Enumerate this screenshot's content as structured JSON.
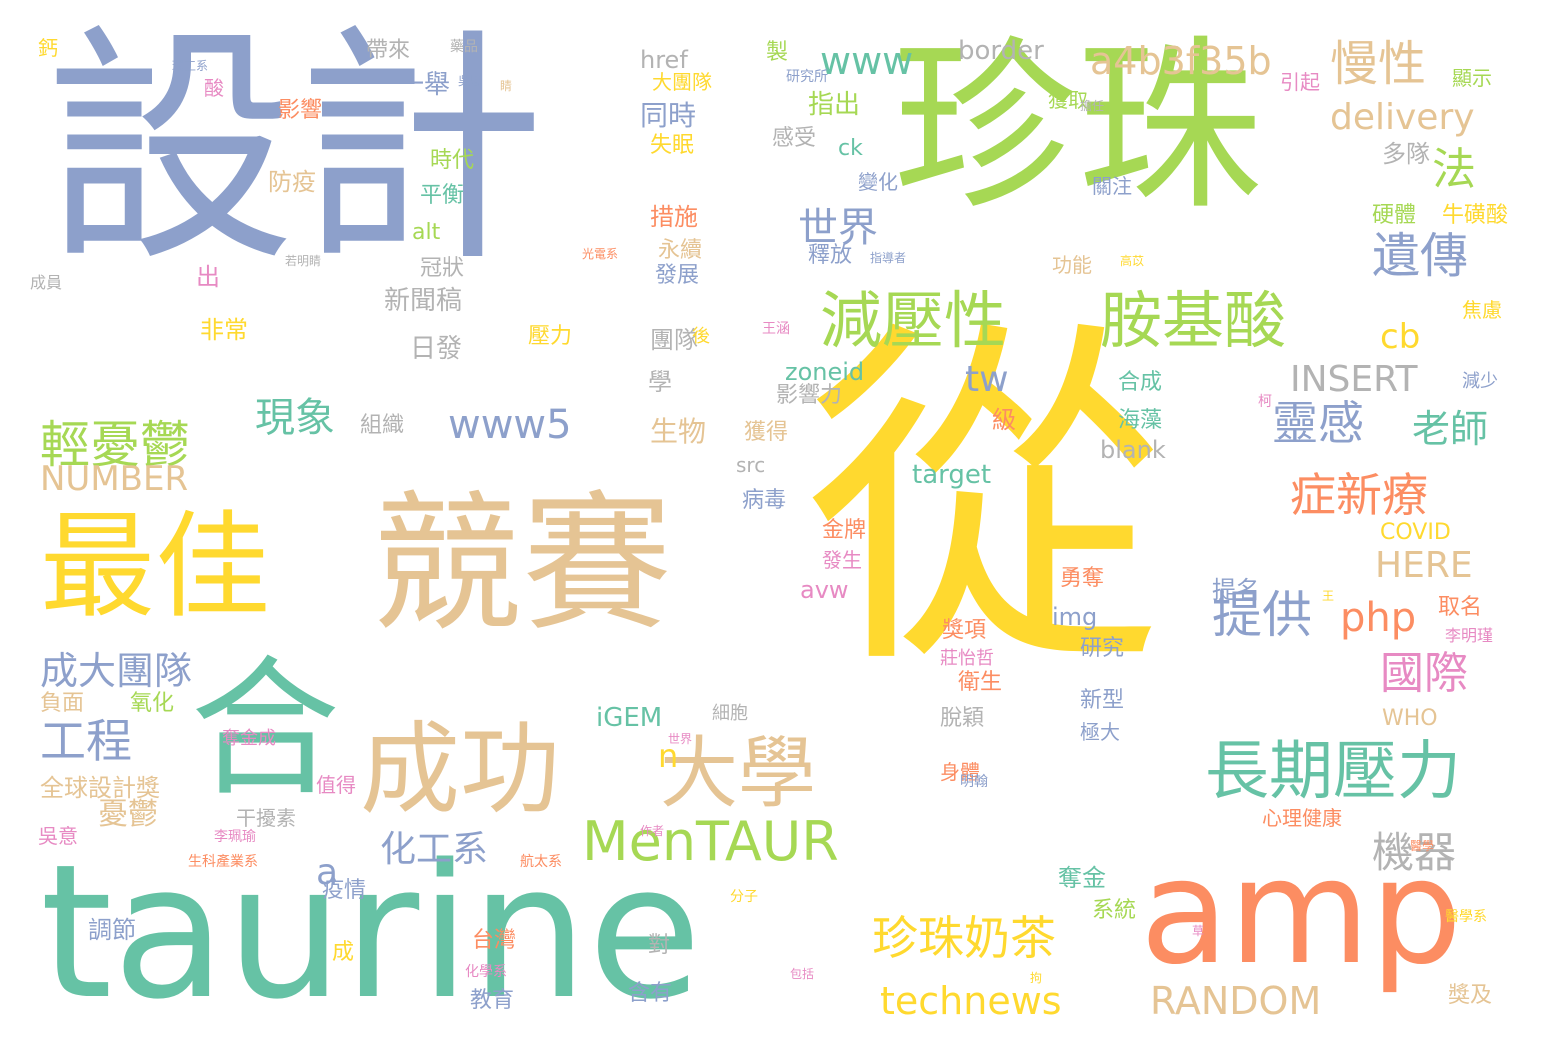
{
  "palette": {
    "blue": "#8da0cb",
    "green": "#66c2a5",
    "orange": "#fc8d62",
    "pink": "#e78ac3",
    "lime": "#a6d854",
    "yellow": "#ffd92f",
    "tan": "#e5c494",
    "gray": "#b3b3b3"
  },
  "words": [
    {
      "text": "設計",
      "color": "blue"
    },
    {
      "text": "珍珠",
      "color": "lime"
    },
    {
      "text": "從",
      "color": "yellow"
    },
    {
      "text": "競賽",
      "color": "tan"
    },
    {
      "text": "最佳",
      "color": "yellow"
    },
    {
      "text": "合",
      "color": "green"
    },
    {
      "text": "taurine",
      "color": "green"
    },
    {
      "text": "amp",
      "color": "orange"
    },
    {
      "text": "成功",
      "color": "tan"
    },
    {
      "text": "大學",
      "color": "tan"
    },
    {
      "text": "減壓性",
      "color": "lime"
    },
    {
      "text": "胺基酸",
      "color": "lime"
    },
    {
      "text": "長期壓力",
      "color": "green"
    },
    {
      "text": "MenTAUR",
      "color": "lime"
    },
    {
      "text": "慢性",
      "color": "tan"
    },
    {
      "text": "a4b3f35b",
      "color": "tan"
    },
    {
      "text": "www",
      "color": "green"
    },
    {
      "text": "遺傳",
      "color": "blue"
    },
    {
      "text": "法",
      "color": "lime"
    },
    {
      "text": "世界",
      "color": "blue"
    },
    {
      "text": "delivery",
      "color": "tan"
    },
    {
      "text": "輕憂鬱",
      "color": "lime"
    },
    {
      "text": "現象",
      "color": "green"
    },
    {
      "text": "www5",
      "color": "blue"
    },
    {
      "text": "NUMBER",
      "color": "tan"
    },
    {
      "text": "INSERT",
      "color": "gray"
    },
    {
      "text": "靈感",
      "color": "blue"
    },
    {
      "text": "老師",
      "color": "green"
    },
    {
      "text": "症新療",
      "color": "orange"
    },
    {
      "text": "提供",
      "color": "blue"
    },
    {
      "text": "php",
      "color": "orange"
    },
    {
      "text": "國際",
      "color": "pink"
    },
    {
      "text": "工程",
      "color": "blue"
    },
    {
      "text": "成大團隊",
      "color": "blue"
    },
    {
      "text": "珍珠奶茶",
      "color": "yellow"
    },
    {
      "text": "technews",
      "color": "yellow"
    },
    {
      "text": "RANDOM",
      "color": "tan"
    },
    {
      "text": "機器",
      "color": "gray"
    },
    {
      "text": "化工系",
      "color": "blue"
    },
    {
      "text": "HERE",
      "color": "tan"
    },
    {
      "text": "cb",
      "color": "yellow"
    },
    {
      "text": "tw",
      "color": "blue"
    },
    {
      "text": "a",
      "color": "blue"
    },
    {
      "text": "n",
      "color": "yellow"
    },
    {
      "text": "憂鬱",
      "color": "tan"
    },
    {
      "text": "border",
      "color": "gray"
    },
    {
      "text": "href",
      "color": "gray"
    },
    {
      "text": "一舉",
      "color": "blue"
    },
    {
      "text": "指出",
      "color": "lime"
    },
    {
      "text": "同時",
      "color": "blue"
    },
    {
      "text": "多隊",
      "color": "gray"
    },
    {
      "text": "zoneid",
      "color": "green"
    },
    {
      "text": "影響力",
      "color": "gray"
    },
    {
      "text": "新聞稿",
      "color": "gray"
    },
    {
      "text": "日發",
      "color": "gray"
    },
    {
      "text": "組織",
      "color": "gray"
    },
    {
      "text": "生物",
      "color": "tan"
    },
    {
      "text": "獲得",
      "color": "tan"
    },
    {
      "text": "團隊",
      "color": "gray"
    },
    {
      "text": "學",
      "color": "gray"
    },
    {
      "text": "冠狀",
      "color": "gray"
    },
    {
      "text": "發展",
      "color": "blue"
    },
    {
      "text": "永續",
      "color": "tan"
    },
    {
      "text": "措施",
      "color": "orange"
    },
    {
      "text": "合成",
      "color": "green"
    },
    {
      "text": "海藻",
      "color": "green"
    },
    {
      "text": "級",
      "color": "orange"
    },
    {
      "text": "blank",
      "color": "gray"
    },
    {
      "text": "target",
      "color": "green"
    },
    {
      "text": "src",
      "color": "gray"
    },
    {
      "text": "病毒",
      "color": "blue"
    },
    {
      "text": "金牌",
      "color": "orange"
    },
    {
      "text": "發生",
      "color": "pink"
    },
    {
      "text": "avw",
      "color": "pink"
    },
    {
      "text": "COVID",
      "color": "yellow"
    },
    {
      "text": "勇奪",
      "color": "orange"
    },
    {
      "text": "img",
      "color": "blue"
    },
    {
      "text": "提名",
      "color": "blue"
    },
    {
      "text": "取名",
      "color": "orange"
    },
    {
      "text": "獎項",
      "color": "orange"
    },
    {
      "text": "研究",
      "color": "blue"
    },
    {
      "text": "衛生",
      "color": "orange"
    },
    {
      "text": "新型",
      "color": "blue"
    },
    {
      "text": "iGEM",
      "color": "green"
    },
    {
      "text": "WHO",
      "color": "tan"
    },
    {
      "text": "全球設計獎",
      "color": "tan"
    },
    {
      "text": "負面",
      "color": "tan"
    },
    {
      "text": "氧化",
      "color": "lime"
    },
    {
      "text": "干擾素",
      "color": "gray"
    },
    {
      "text": "脫穎",
      "color": "gray"
    },
    {
      "text": "極大",
      "color": "blue"
    },
    {
      "text": "身體",
      "color": "orange"
    },
    {
      "text": "奪金",
      "color": "green"
    },
    {
      "text": "系統",
      "color": "lime"
    },
    {
      "text": "疫情",
      "color": "blue"
    },
    {
      "text": "調節",
      "color": "blue"
    },
    {
      "text": "成",
      "color": "yellow"
    },
    {
      "text": "台灣",
      "color": "orange"
    },
    {
      "text": "對",
      "color": "gray"
    },
    {
      "text": "教育",
      "color": "blue"
    },
    {
      "text": "含有",
      "color": "blue"
    },
    {
      "text": "獎及",
      "color": "tan"
    },
    {
      "text": "心理健康",
      "color": "orange"
    },
    {
      "text": "吳意",
      "color": "pink"
    },
    {
      "text": "硬體",
      "color": "lime"
    },
    {
      "text": "牛磺酸",
      "color": "yellow"
    },
    {
      "text": "焦慮",
      "color": "yellow"
    },
    {
      "text": "顯示",
      "color": "lime"
    },
    {
      "text": "引起",
      "color": "pink"
    },
    {
      "text": "減少",
      "color": "blue"
    },
    {
      "text": "獲取",
      "color": "lime"
    },
    {
      "text": "感受",
      "color": "gray"
    },
    {
      "text": "ck",
      "color": "green"
    },
    {
      "text": "變化",
      "color": "blue"
    },
    {
      "text": "關注",
      "color": "blue"
    },
    {
      "text": "功能",
      "color": "tan"
    },
    {
      "text": "釋放",
      "color": "blue"
    },
    {
      "text": "時代",
      "color": "lime"
    },
    {
      "text": "平衡",
      "color": "green"
    },
    {
      "text": "防疫",
      "color": "tan"
    },
    {
      "text": "alt",
      "color": "lime"
    },
    {
      "text": "出",
      "color": "pink"
    },
    {
      "text": "非常",
      "color": "yellow"
    },
    {
      "text": "壓力",
      "color": "yellow"
    },
    {
      "text": "失眠",
      "color": "yellow"
    },
    {
      "text": "帶來",
      "color": "gray"
    },
    {
      "text": "影響",
      "color": "orange"
    },
    {
      "text": "酸",
      "color": "pink"
    },
    {
      "text": "鈣",
      "color": "yellow"
    },
    {
      "text": "製",
      "color": "lime"
    },
    {
      "text": "值得",
      "color": "pink"
    },
    {
      "text": "奪金成",
      "color": "pink"
    },
    {
      "text": "大團隊",
      "color": "yellow"
    },
    {
      "text": "後",
      "color": "yellow"
    },
    {
      "text": "莊怡哲",
      "color": "pink"
    },
    {
      "text": "細胞",
      "color": "gray"
    },
    {
      "text": "成員",
      "color": "gray"
    },
    {
      "text": "李明瑾",
      "color": "pink"
    },
    {
      "text": "李珮瑜",
      "color": "pink"
    },
    {
      "text": "生科產業系",
      "color": "orange"
    },
    {
      "text": "航太系",
      "color": "orange"
    },
    {
      "text": "分子",
      "color": "yellow"
    },
    {
      "text": "作者",
      "color": "pink"
    },
    {
      "text": "化學系",
      "color": "pink"
    },
    {
      "text": "醫學系",
      "color": "yellow"
    },
    {
      "text": "世界",
      "color": "pink"
    },
    {
      "text": "研究所",
      "color": "blue"
    },
    {
      "text": "指導者",
      "color": "blue"
    },
    {
      "text": "擔任",
      "color": "gray"
    },
    {
      "text": "包括",
      "color": "pink"
    },
    {
      "text": "藥品",
      "color": "gray"
    },
    {
      "text": "環工系",
      "color": "blue"
    },
    {
      "text": "若明睛",
      "color": "gray"
    },
    {
      "text": "光電系",
      "color": "orange"
    },
    {
      "text": "王涵",
      "color": "pink"
    },
    {
      "text": "高苡",
      "color": "yellow"
    },
    {
      "text": "柯",
      "color": "pink"
    },
    {
      "text": "明翰",
      "color": "blue"
    },
    {
      "text": "醫學",
      "color": "orange"
    },
    {
      "text": "拘",
      "color": "yellow"
    },
    {
      "text": "草",
      "color": "pink"
    },
    {
      "text": "王",
      "color": "yellow"
    },
    {
      "text": "吳思",
      "color": "blue"
    },
    {
      "text": "睛",
      "color": "tan"
    }
  ]
}
